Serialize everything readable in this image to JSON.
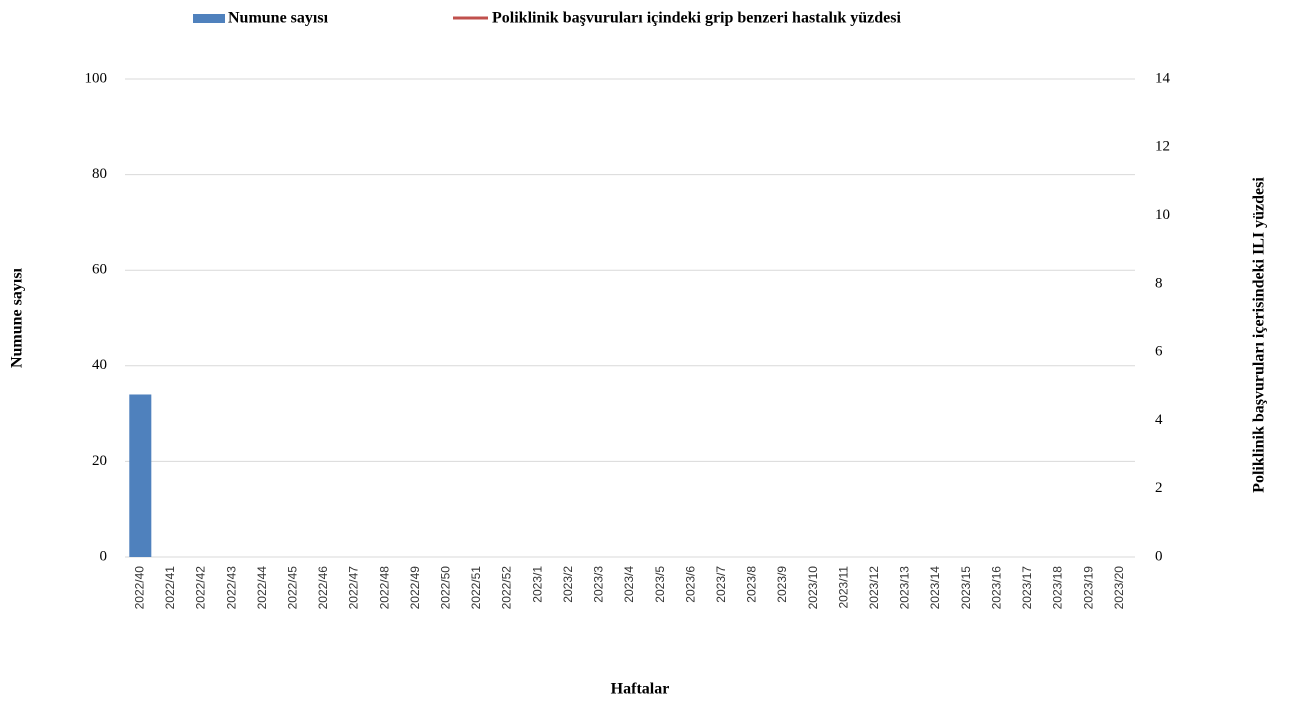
{
  "chart_data": {
    "type": "bar-line",
    "categories": [
      "2022/40",
      "2022/41",
      "2022/42",
      "2022/43",
      "2022/44",
      "2022/45",
      "2022/46",
      "2022/47",
      "2022/48",
      "2022/49",
      "2022/50",
      "2022/51",
      "2022/52",
      "2023/1",
      "2023/2",
      "2023/3",
      "2023/4",
      "2023/5",
      "2023/6",
      "2023/7",
      "2023/8",
      "2023/9",
      "2023/10",
      "2023/11",
      "2023/12",
      "2023/13",
      "2023/14",
      "2023/15",
      "2023/16",
      "2023/17",
      "2023/18",
      "2023/19",
      "2023/20"
    ],
    "series": [
      {
        "name": "Numune sayısı",
        "type": "bar",
        "color": "#4f81bd",
        "values": [
          34,
          null,
          null,
          null,
          null,
          null,
          null,
          null,
          null,
          null,
          null,
          null,
          null,
          null,
          null,
          null,
          null,
          null,
          null,
          null,
          null,
          null,
          null,
          null,
          null,
          null,
          null,
          null,
          null,
          null,
          null,
          null,
          null
        ]
      },
      {
        "name": "Poliklinik başvuruları içindeki grip benzeri hastalık yüzdesi",
        "type": "line",
        "color": "#c0504d",
        "axis": "y2",
        "values": [
          null,
          null,
          null,
          null,
          null,
          null,
          null,
          null,
          null,
          null,
          null,
          null,
          null,
          null,
          null,
          null,
          null,
          null,
          null,
          null,
          null,
          null,
          null,
          null,
          null,
          null,
          null,
          null,
          null,
          null,
          null,
          null,
          null
        ]
      }
    ],
    "x_label": "Haftalar",
    "y_label": "Numune sayısı",
    "y2_label": "Poliklinik başvuruları içerisindeki ILI yüzdesi",
    "ylim": [
      0,
      100
    ],
    "yticks": [
      0,
      20,
      40,
      60,
      80,
      100
    ],
    "y2lim": [
      0,
      14
    ],
    "y2ticks": [
      0,
      2,
      4,
      6,
      8,
      10,
      12,
      14
    ],
    "grid": true,
    "legend": "top"
  }
}
